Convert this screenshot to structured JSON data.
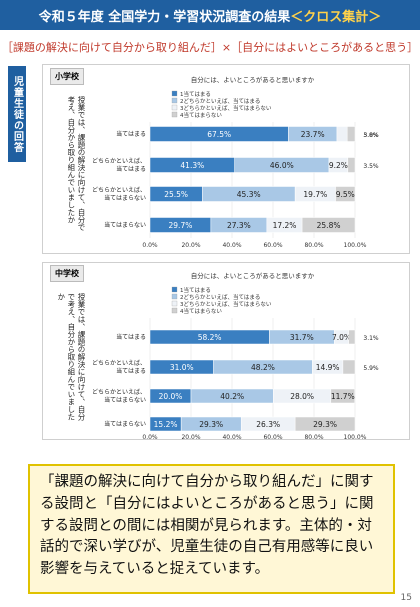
{
  "header": {
    "title_main": "令和５年度 全国学力・学習状況調査の結果",
    "title_accent": "＜クロス集計＞"
  },
  "subtitle": "［課題の解決に向けて自分から取り組んだ］×［自分にはよいところがあると思う］",
  "side_label": "児童生徒の回答",
  "question_text": "授業では、課題の解決に向けて、自分で考え、自分から取り組んでいましたか",
  "summary": "「課題の解決に向けて自分から取り組んだ」に関する設問と「自分にはよいところがあると思う」に関する設問との間には相関が見られます。主体的・対話的で深い学びが、児童生徒の自己有用感等に良い影響を与えていると捉えています。",
  "page_number": "15",
  "colors": {
    "s1": "#3a7fc1",
    "s2": "#a9c8e6",
    "s3": "#eef2f7",
    "s4": "#d0d0d0"
  },
  "chart_data": [
    {
      "type": "bar",
      "school": "小学校",
      "title": "自分には、よいところがあると思いますか",
      "categories": [
        "当てはまる",
        "どちらかといえば、当てはまる",
        "どちらかといえば、当てはまらない",
        "当てはまらない"
      ],
      "series": [
        {
          "name": "1当てはまる",
          "values": [
            67.5,
            41.3,
            25.5,
            29.7
          ]
        },
        {
          "name": "2どちらかといえば、当てはまる",
          "values": [
            23.7,
            46.0,
            45.3,
            27.3
          ]
        },
        {
          "name": "3どちらかといえば、当てはまらない",
          "values": [
            5.0,
            9.2,
            19.7,
            17.2
          ]
        },
        {
          "name": "4当てはまらない",
          "values": [
            3.8,
            3.5,
            9.5,
            25.8
          ]
        }
      ],
      "labels": [
        [
          "67.5%",
          "23.7%",
          "5.0%",
          "3.8%"
        ],
        [
          "41.3%",
          "46.0%",
          "9.2%",
          "3.5%"
        ],
        [
          "25.5%",
          "45.3%",
          "19.7%",
          "9.5%"
        ],
        [
          "29.7%",
          "27.3%",
          "17.2%",
          "25.8%"
        ]
      ],
      "ticks": [
        "0.0%",
        "20.0%",
        "40.0%",
        "60.0%",
        "80.0%",
        "100.0%"
      ],
      "xlim": [
        0,
        100
      ]
    },
    {
      "type": "bar",
      "school": "中学校",
      "title": "自分には、よいところがあると思いますか",
      "categories": [
        "当てはまる",
        "どちらかといえば、当てはまる",
        "どちらかといえば、当てはまらない",
        "当てはまらない"
      ],
      "series": [
        {
          "name": "1当てはまる",
          "values": [
            58.2,
            31.0,
            20.0,
            15.2
          ]
        },
        {
          "name": "2どちらかといえば、当てはまる",
          "values": [
            31.7,
            48.2,
            40.2,
            29.3
          ]
        },
        {
          "name": "3どちらかといえば、当てはまらない",
          "values": [
            7.0,
            14.9,
            28.0,
            26.3
          ]
        },
        {
          "name": "4当てはまらない",
          "values": [
            3.1,
            5.9,
            11.7,
            29.3
          ]
        }
      ],
      "labels": [
        [
          "58.2%",
          "31.7%",
          "7.0%",
          "3.1%"
        ],
        [
          "31.0%",
          "48.2%",
          "14.9%",
          "5.9%"
        ],
        [
          "20.0%",
          "40.2%",
          "28.0%",
          "11.7%"
        ],
        [
          "15.2%",
          "29.3%",
          "26.3%",
          "29.3%"
        ]
      ],
      "ticks": [
        "0.0%",
        "20.0%",
        "40.0%",
        "60.0%",
        "80.0%",
        "100.0%"
      ],
      "xlim": [
        0,
        100
      ]
    }
  ]
}
